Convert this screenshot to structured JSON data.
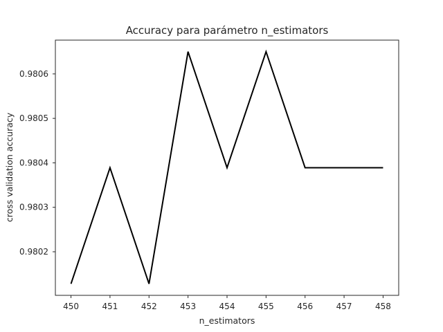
{
  "chart_data": {
    "type": "line",
    "title": "Accuracy para parámetro n_estimators",
    "xlabel": "n_estimators",
    "ylabel": "cross validation accuracy",
    "x": [
      450,
      451,
      452,
      453,
      454,
      455,
      456,
      457,
      458
    ],
    "series": [
      {
        "values": [
          0.980128,
          0.980389,
          0.980128,
          0.98065,
          0.980389,
          0.98065,
          0.980389,
          0.980389,
          0.980389
        ],
        "color": "#000000"
      }
    ],
    "xticks": [
      "450",
      "451",
      "452",
      "453",
      "454",
      "455",
      "456",
      "457",
      "458"
    ],
    "yticks": [
      "0.9802",
      "0.9803",
      "0.9804",
      "0.9805",
      "0.9806"
    ],
    "xlim": [
      449.6,
      458.4
    ],
    "ylim": [
      0.980102,
      0.980676
    ],
    "grid": false
  }
}
